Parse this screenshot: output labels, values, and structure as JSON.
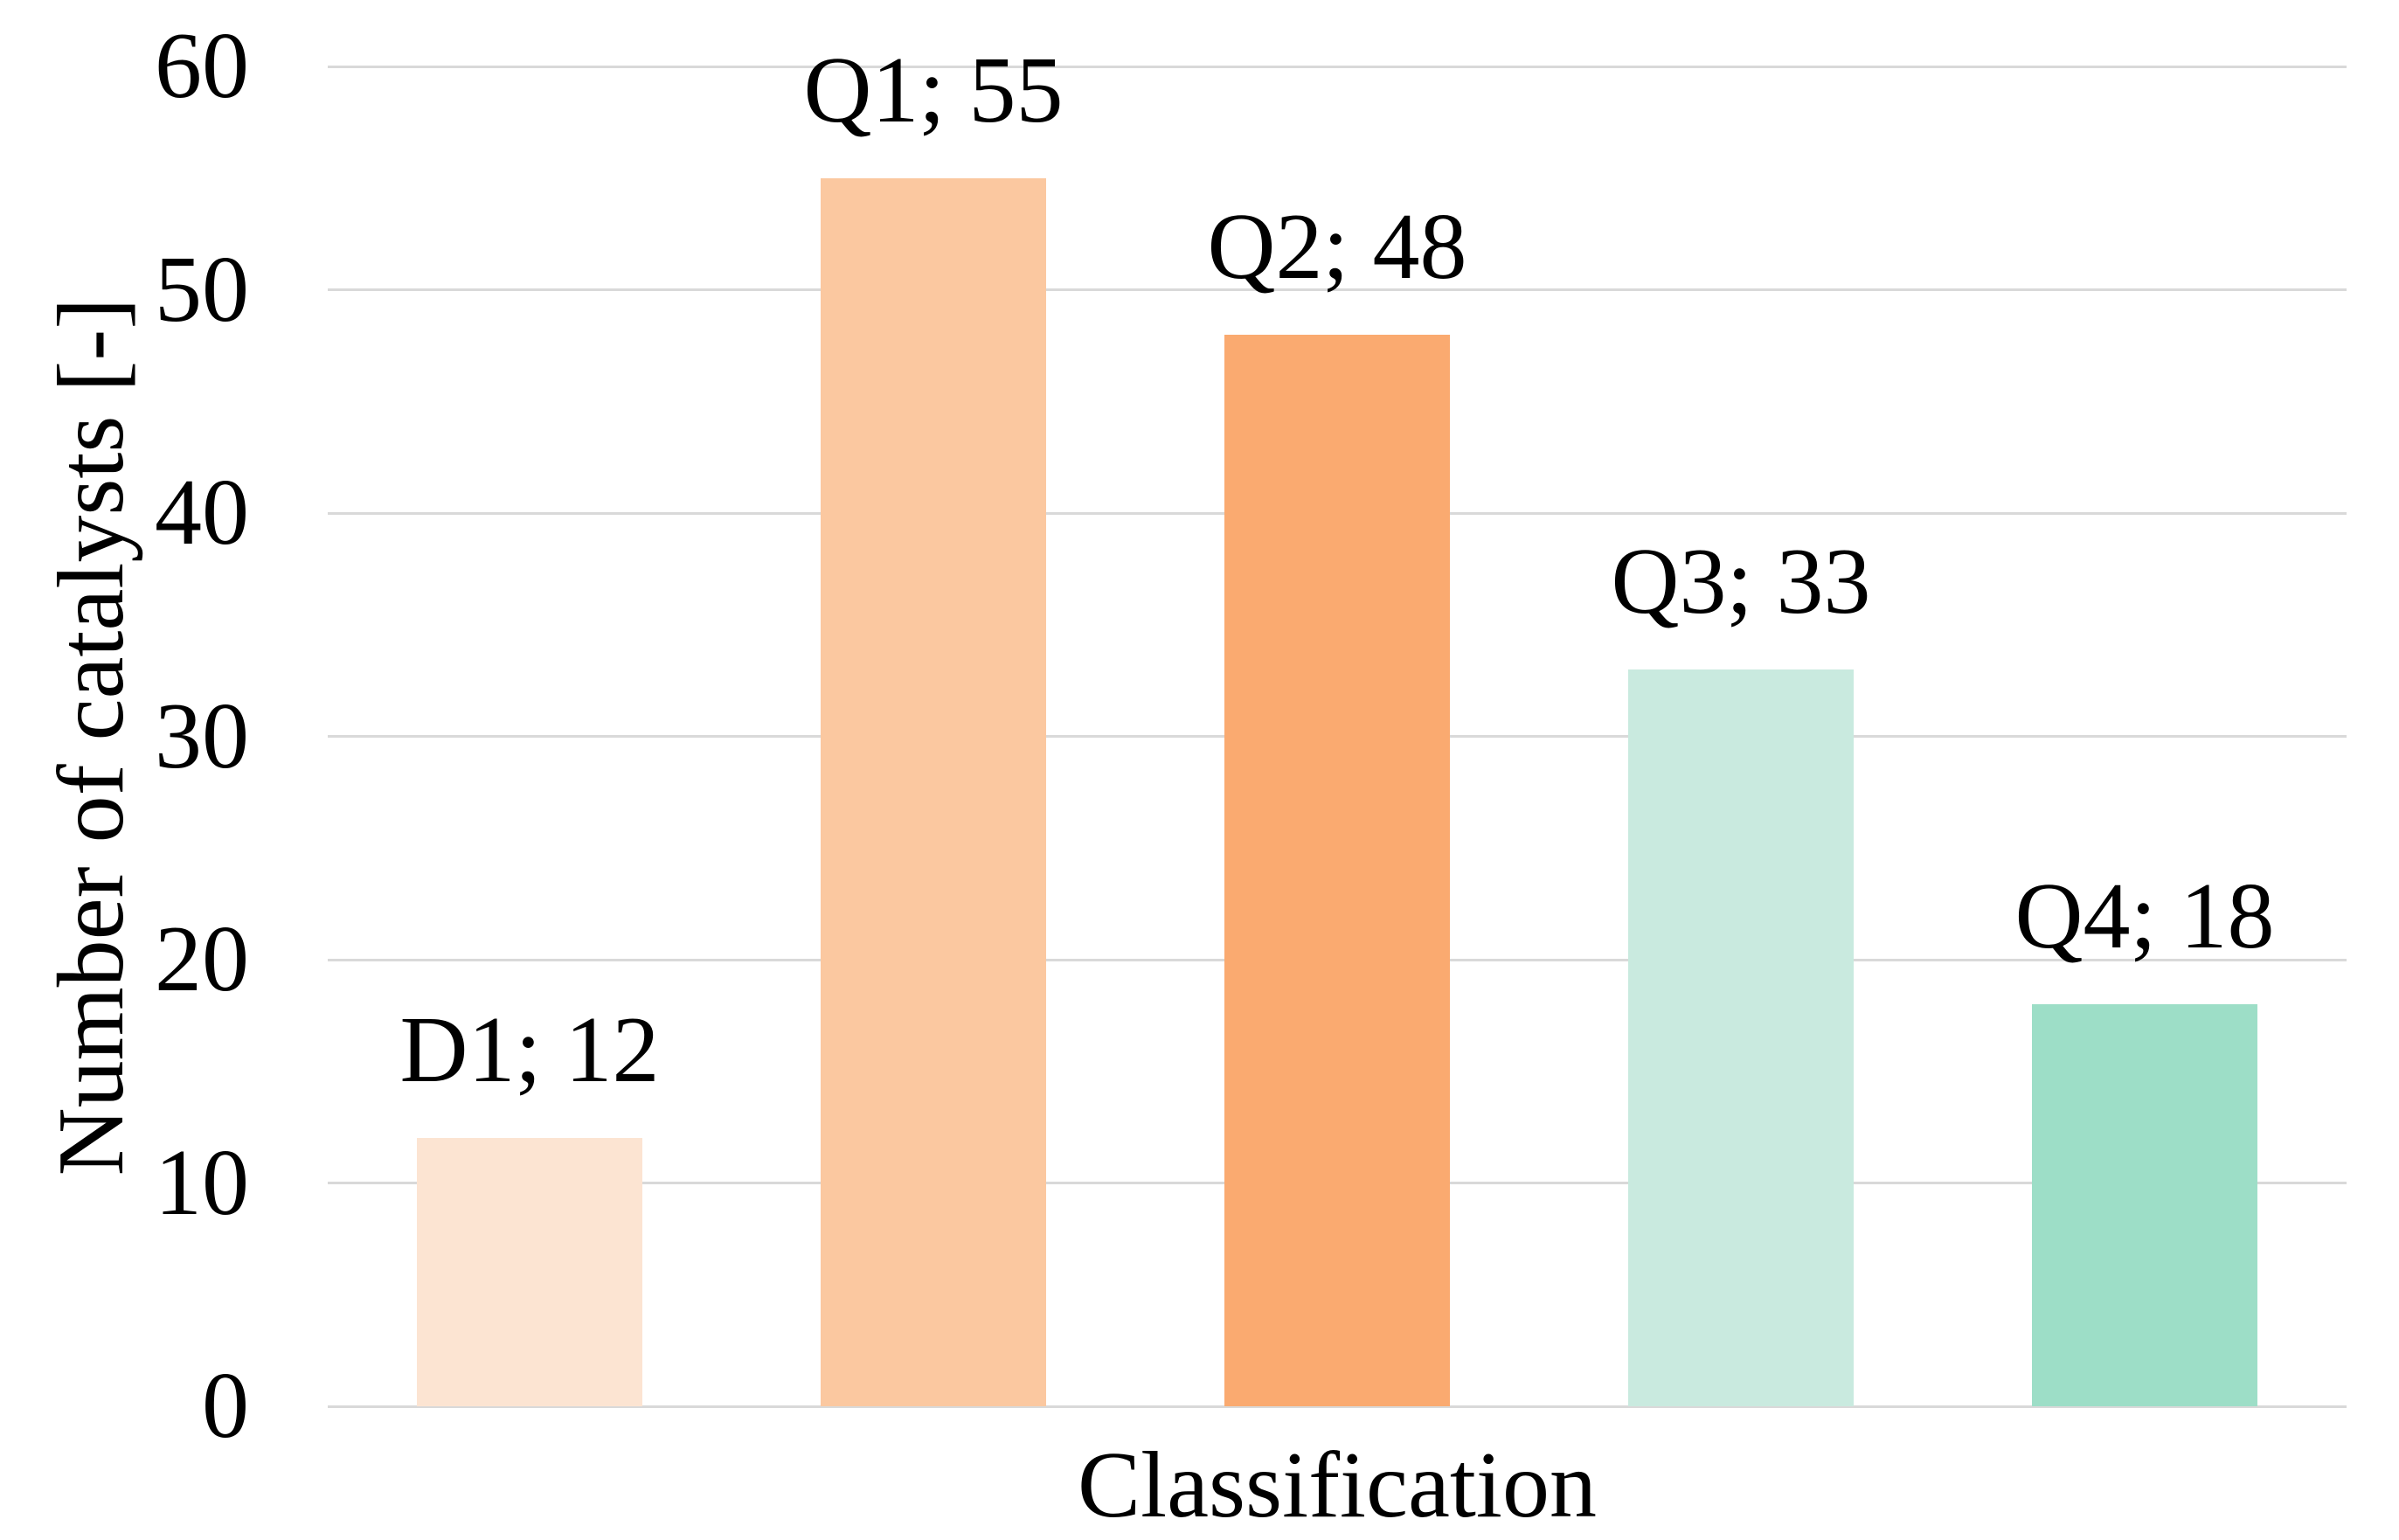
{
  "chart_data": {
    "type": "bar",
    "title": "",
    "xlabel": "Classification",
    "ylabel": "Number of catalysts [-]",
    "categories": [
      "D1",
      "Q1",
      "Q2",
      "Q3",
      "Q4"
    ],
    "values": [
      12,
      55,
      48,
      33,
      18
    ],
    "data_labels": [
      "D1; 12",
      "Q1; 55",
      "Q2; 48",
      "Q3; 33",
      "Q4; 18"
    ],
    "bar_colors": [
      "#fce4d2",
      "#fbc8a0",
      "#faaa70",
      "#c9eadf",
      "#9ddec7"
    ],
    "ylim": [
      0,
      60
    ],
    "yticks": [
      0,
      10,
      20,
      30,
      40,
      50,
      60
    ],
    "grid": "horizontal",
    "gridline_color": "#d9d9d9",
    "background_color": "#ffffff",
    "text_color": "#000000",
    "legend_position": "none"
  }
}
